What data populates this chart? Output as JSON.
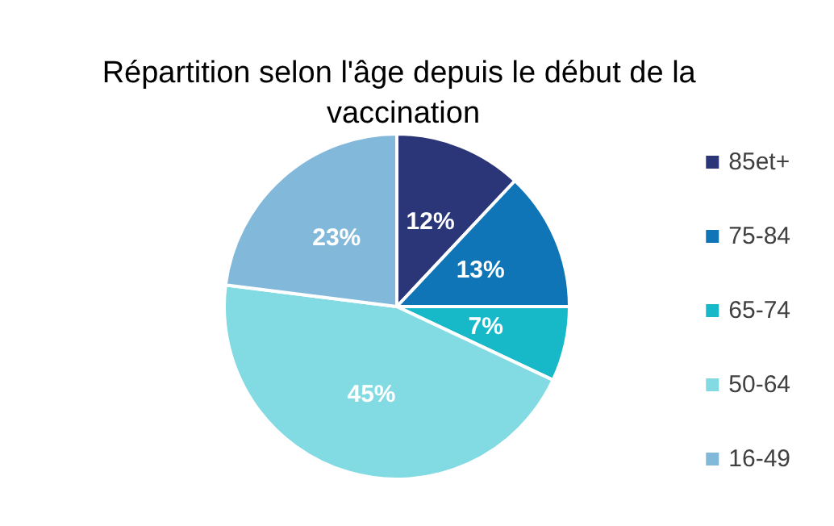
{
  "chart_data": {
    "type": "pie",
    "title": "Répartition selon l'âge depuis le début de la vaccination",
    "categories": [
      "85et+",
      "75-84",
      "65-74",
      "50-64",
      "16-49"
    ],
    "values": [
      12,
      13,
      7,
      45,
      23
    ],
    "value_labels": [
      "12%",
      "13%",
      "7%",
      "45%",
      "23%"
    ],
    "colors": [
      "#2b3679",
      "#0f75b6",
      "#17b9c9",
      "#82dae2",
      "#82b9db"
    ],
    "legend": "right"
  }
}
